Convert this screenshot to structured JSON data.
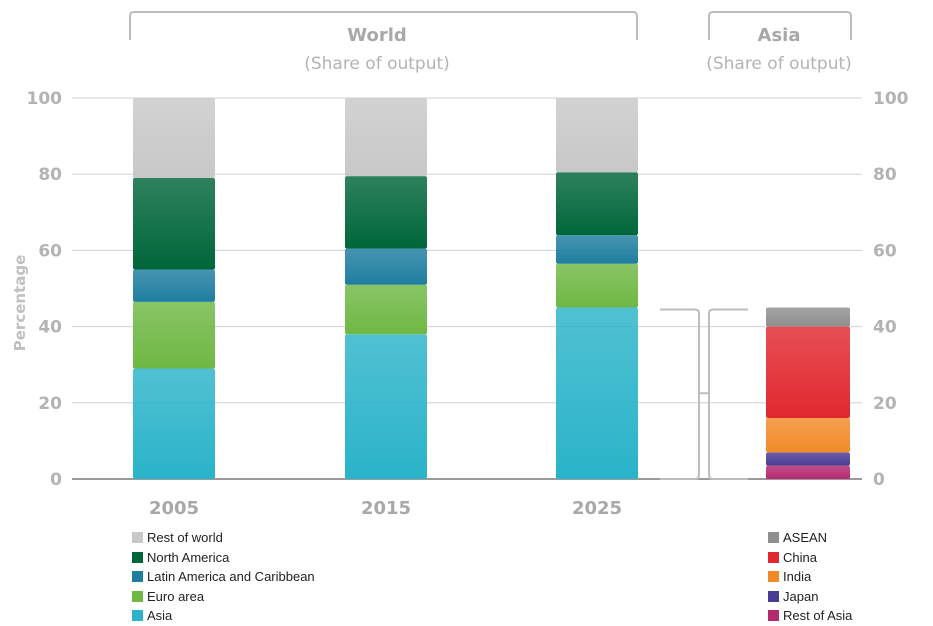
{
  "chart_data": [
    {
      "type": "bar",
      "stacked": true,
      "title": "World",
      "subtitle": "(Share of output)",
      "ylabel": "Percentage",
      "ylim": [
        0,
        100
      ],
      "yticks": [
        "0",
        "20",
        "40",
        "60",
        "80",
        "100"
      ],
      "categories": [
        "2005",
        "2015",
        "2025"
      ],
      "series": [
        {
          "name": "Asia",
          "color": "#2ab3c9",
          "values": [
            29,
            38,
            45
          ]
        },
        {
          "name": "Euro area",
          "color": "#6fb844",
          "values": [
            17.5,
            13,
            11.5
          ]
        },
        {
          "name": "Latin America and Caribbean",
          "color": "#1f7ea0",
          "values": [
            8.5,
            9.5,
            7.5
          ]
        },
        {
          "name": "North America",
          "color": "#00663a",
          "values": [
            24,
            19,
            16.5
          ]
        },
        {
          "name": "Rest of world",
          "color": "#c8c8c8",
          "values": [
            21,
            20.5,
            19.5
          ]
        }
      ],
      "grid": true,
      "legend": "bottom-left"
    },
    {
      "type": "bar",
      "stacked": true,
      "title": "Asia",
      "subtitle": "(Share of output)",
      "ylim": [
        0,
        100
      ],
      "yticks": [
        "0",
        "20",
        "40",
        "60",
        "80",
        "100"
      ],
      "categories": [
        ""
      ],
      "series": [
        {
          "name": "Rest of Asia",
          "color": "#b5296f",
          "values": [
            3.5
          ]
        },
        {
          "name": "Japan",
          "color": "#4a3c93",
          "values": [
            3.5
          ]
        },
        {
          "name": "India",
          "color": "#f28a2a",
          "values": [
            9
          ]
        },
        {
          "name": "China",
          "color": "#e0282e",
          "values": [
            24
          ]
        },
        {
          "name": "ASEAN",
          "color": "#8f8f8f",
          "values": [
            5
          ]
        }
      ],
      "legend": "bottom-right"
    }
  ],
  "legend_world": [
    "Rest of world",
    "North America",
    "Latin America and Caribbean",
    "Euro area",
    "Asia"
  ],
  "legend_asia": [
    "ASEAN",
    "China",
    "India",
    "Japan",
    "Rest of Asia"
  ]
}
